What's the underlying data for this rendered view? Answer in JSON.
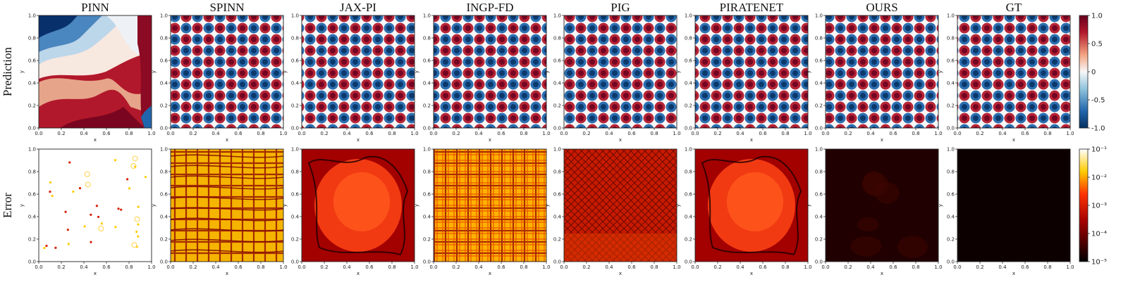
{
  "figure": {
    "column_titles": [
      "PINN",
      "SPINN",
      "JAX-PI",
      "INGP-FD",
      "PIG",
      "PIRATENET",
      "OURS",
      "GT"
    ],
    "row_labels": [
      "Prediction",
      "Error"
    ]
  },
  "chart_data": [
    {
      "type": "heatmap",
      "row": "Prediction",
      "panels": [
        "PINN",
        "SPINN",
        "JAX-PI",
        "INGP-FD",
        "PIG",
        "PIRATENET",
        "OURS",
        "GT"
      ],
      "xlabel": "x",
      "ylabel": "y",
      "xlim": [
        0.0,
        1.0
      ],
      "ylim": [
        0.0,
        1.0
      ],
      "x_ticks": [
        "0.0",
        "0.2",
        "0.4",
        "0.6",
        "0.8",
        "1.0"
      ],
      "y_ticks": [
        "0.0",
        "0.2",
        "0.4",
        "0.6",
        "0.8",
        "1.0"
      ],
      "field_pattern": "checkerboard 10x10 cells",
      "pinn_field": "smooth large-scale bands, not matching pattern",
      "colormap": "RdBu_r",
      "colors": {
        "low": "#053061",
        "mid": "#f7f7f7",
        "high": "#67001f"
      },
      "colorbar": {
        "min": -1.0,
        "max": 1.0,
        "scale": "linear",
        "ticks": [
          "1.0",
          "0.5",
          "0",
          "-0.5",
          "-1.0"
        ]
      }
    },
    {
      "type": "heatmap",
      "row": "Error",
      "panels": [
        "PINN",
        "SPINN",
        "JAX-PI",
        "INGP-FD",
        "PIG",
        "PIRATENET",
        "OURS",
        "GT"
      ],
      "xlabel": "x",
      "ylabel": "y",
      "xlim": [
        0.0,
        1.0
      ],
      "ylim": [
        0.0,
        1.0
      ],
      "x_ticks": [
        "0.0",
        "0.2",
        "0.4",
        "0.6",
        "0.8",
        "1.0"
      ],
      "y_ticks": [
        "0.0",
        "0.2",
        "0.4",
        "0.6",
        "0.8",
        "1.0"
      ],
      "colormap": "hot",
      "colors": {
        "low": "#000000",
        "mid": "#e01a00",
        "high": "#ffffff"
      },
      "colorbar": {
        "min": 1e-05,
        "max": 0.1,
        "scale": "log",
        "ticks": [
          "10⁻¹",
          "10⁻²",
          "10⁻³",
          "10⁻⁴",
          "10⁻⁵"
        ]
      },
      "error_levels": {
        "PINN": 0.1,
        "SPINN": 0.002,
        "JAX-PI": 0.0006,
        "INGP-FD": 0.004,
        "PIG": 0.0003,
        "PIRATENET": 0.0006,
        "OURS": 2e-05,
        "GT": 1e-05
      }
    }
  ]
}
